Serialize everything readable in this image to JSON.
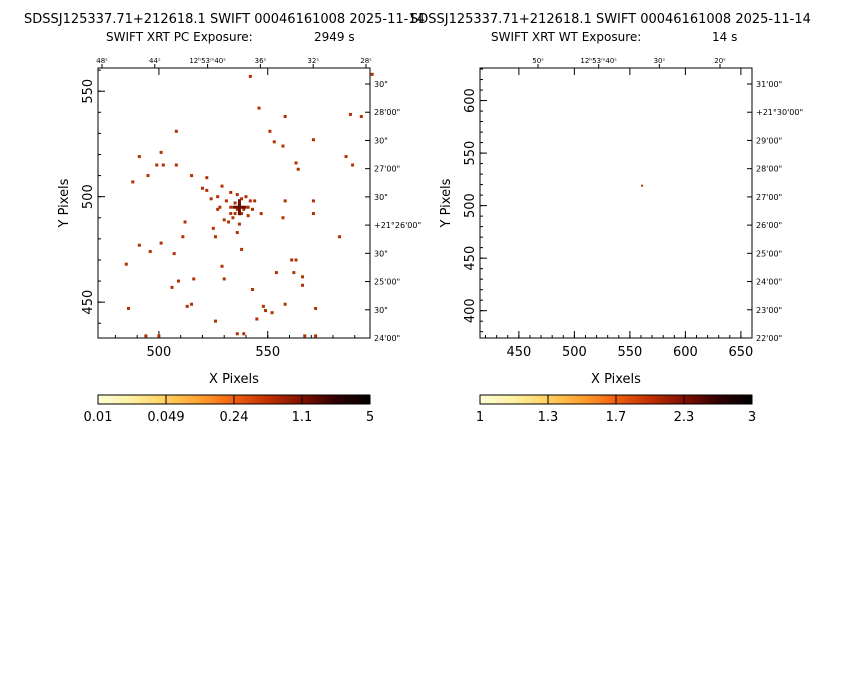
{
  "panels": [
    {
      "title": "SDSSJ125337.71+212618.1  SWIFT 00046161008  2025-11-14",
      "subtitle_label": "SWIFT XRT PC Exposure:",
      "subtitle_value": "2949 s",
      "colorbar_ticks": [
        "0.01",
        "0.049",
        "0.24",
        "1.1",
        "5"
      ]
    },
    {
      "title": "SDSSJ125337.71+212618.1  SWIFT 00046161008  2025-11-14",
      "subtitle_label": "SWIFT XRT WT Exposure:",
      "subtitle_value": "14 s",
      "colorbar_ticks": [
        "1",
        "1.3",
        "1.7",
        "2.3",
        "3"
      ]
    }
  ],
  "colors": {
    "event": "#b03000",
    "colormap": [
      "#ffffd8",
      "#fff0a0",
      "#ffd060",
      "#ffa030",
      "#f06010",
      "#c03000",
      "#801000",
      "#300000",
      "#000000"
    ]
  },
  "chart_data": [
    {
      "type": "scatter",
      "title": "SDSSJ125337.71+212618.1  SWIFT 00046161008  2025-11-14",
      "xlabel": "X Pixels",
      "ylabel": "Y Pixels",
      "xlim": [
        472,
        597
      ],
      "ylim": [
        433,
        561
      ],
      "xticks": [
        500,
        550
      ],
      "yticks": [
        450,
        500,
        550
      ],
      "top_ticks": [
        "48ˢ",
        "44ˢ",
        "12ʰ53ᵐ40ˢ",
        "36ˢ",
        "32ˢ",
        "28ˢ"
      ],
      "right_ticks": [
        "30\"",
        "28'00\"",
        "30\"",
        "27'00\"",
        "30\"",
        "+21°26'00\"",
        "30\"",
        "25'00\"",
        "30\"",
        "24'00\""
      ],
      "colorbar_ticks": [
        "0.01",
        "0.049",
        "0.24",
        "1.1",
        "5"
      ],
      "points": [
        [
          542,
          557
        ],
        [
          546,
          542
        ],
        [
          558,
          538
        ],
        [
          551,
          531
        ],
        [
          553,
          526
        ],
        [
          571,
          527
        ],
        [
          508,
          531
        ],
        [
          557,
          524
        ],
        [
          501,
          521
        ],
        [
          491,
          519
        ],
        [
          563,
          516
        ],
        [
          499,
          515
        ],
        [
          502,
          515
        ],
        [
          508,
          515
        ],
        [
          564,
          513
        ],
        [
          495,
          510
        ],
        [
          488,
          507
        ],
        [
          522,
          509
        ],
        [
          515,
          510
        ],
        [
          529,
          505
        ],
        [
          533,
          502
        ],
        [
          522,
          503
        ],
        [
          520,
          504
        ],
        [
          527,
          500
        ],
        [
          544,
          498
        ],
        [
          524,
          499
        ],
        [
          531,
          498
        ],
        [
          528,
          495
        ],
        [
          533,
          495
        ],
        [
          540,
          500
        ],
        [
          536,
          501
        ],
        [
          538,
          499
        ],
        [
          535,
          497
        ],
        [
          537,
          496
        ],
        [
          536,
          494
        ],
        [
          539,
          494
        ],
        [
          538,
          492
        ],
        [
          535,
          492
        ],
        [
          534,
          490
        ],
        [
          541,
          495
        ],
        [
          542,
          498
        ],
        [
          527,
          494
        ],
        [
          543,
          494
        ],
        [
          533,
          492
        ],
        [
          541,
          491
        ],
        [
          530,
          489
        ],
        [
          547,
          492
        ],
        [
          557,
          490
        ],
        [
          571,
          498
        ],
        [
          558,
          498
        ],
        [
          571,
          492
        ],
        [
          512,
          488
        ],
        [
          532,
          488
        ],
        [
          537,
          487
        ],
        [
          525,
          485
        ],
        [
          511,
          481
        ],
        [
          536,
          483
        ],
        [
          526,
          481
        ],
        [
          491,
          477
        ],
        [
          501,
          478
        ],
        [
          496,
          474
        ],
        [
          538,
          475
        ],
        [
          561,
          470
        ],
        [
          563,
          470
        ],
        [
          507,
          473
        ],
        [
          485,
          468
        ],
        [
          529,
          467
        ],
        [
          509,
          460
        ],
        [
          562,
          464
        ],
        [
          516,
          461
        ],
        [
          566,
          462
        ],
        [
          530,
          461
        ],
        [
          554,
          464
        ],
        [
          543,
          456
        ],
        [
          566,
          458
        ],
        [
          506,
          457
        ],
        [
          513,
          448
        ],
        [
          515,
          449
        ],
        [
          486,
          447
        ],
        [
          548,
          448
        ],
        [
          558,
          449
        ],
        [
          572,
          447
        ],
        [
          552,
          445
        ],
        [
          549,
          446
        ],
        [
          526,
          441
        ],
        [
          536,
          435
        ],
        [
          539,
          435
        ],
        [
          567,
          434
        ],
        [
          572,
          434
        ],
        [
          545,
          442
        ],
        [
          494,
          434
        ],
        [
          500,
          434
        ],
        [
          589,
          515
        ],
        [
          598,
          558
        ],
        [
          588,
          539
        ],
        [
          593,
          538
        ],
        [
          586,
          519
        ],
        [
          583,
          481
        ]
      ],
      "source_mark": [
        537,
        495
      ]
    },
    {
      "type": "scatter",
      "title": "SDSSJ125337.71+212618.1  SWIFT 00046161008  2025-11-14",
      "xlabel": "X Pixels",
      "ylabel": "Y Pixels",
      "xlim": [
        415,
        660
      ],
      "ylim": [
        374,
        631
      ],
      "xticks": [
        450,
        500,
        550,
        600,
        650
      ],
      "yticks": [
        400,
        450,
        500,
        550,
        600
      ],
      "top_ticks": [
        "50ˢ",
        "12ʰ53ᵐ40ˢ",
        "30ˢ",
        "20ˢ"
      ],
      "right_ticks": [
        "31'00\"",
        "+21°30'00\"",
        "29'00\"",
        "28'00\"",
        "27'00\"",
        "26'00\"",
        "25'00\"",
        "24'00\"",
        "23'00\"",
        "22'00\""
      ],
      "colorbar_ticks": [
        "1",
        "1.3",
        "1.7",
        "2.3",
        "3"
      ],
      "points": [
        [
          561,
          519
        ]
      ]
    }
  ]
}
